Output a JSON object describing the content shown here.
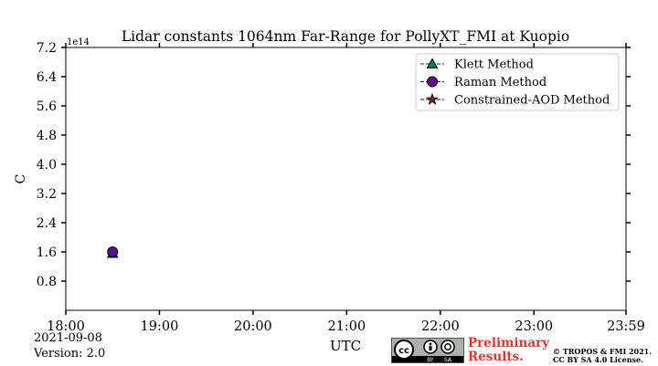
{
  "chart_data": {
    "type": "scatter",
    "title": "Lidar constants 1064nm Far-Range for PollyXT_FMI at Kuopio",
    "xlabel": "UTC",
    "ylabel": "C",
    "y_offset_label": "1e14",
    "x_tick_labels": [
      "18:00",
      "19:00",
      "20:00",
      "21:00",
      "22:00",
      "23:00",
      "23:59"
    ],
    "x_ticks_hours": [
      18,
      19,
      20,
      21,
      22,
      23,
      23.9833
    ],
    "xlim_hours": [
      18,
      23.9833
    ],
    "y_ticks": [
      0.8,
      1.6,
      2.4,
      3.2,
      4.0,
      4.8,
      5.6,
      6.4,
      7.2
    ],
    "y_tick_labels": [
      "0.8",
      "1.6",
      "2.4",
      "3.2",
      "4.0",
      "4.8",
      "5.6",
      "6.4",
      "7.2"
    ],
    "ylim": [
      0,
      7.2
    ],
    "grid": false,
    "legend_position": "top-right",
    "series": [
      {
        "name": "Klett Method",
        "marker": "triangle",
        "color": "#1a7a52",
        "x": [
          "18:30"
        ],
        "values": [
          1.56
        ]
      },
      {
        "name": "Raman Method",
        "marker": "circle",
        "color": "#5a0e8e",
        "x": [
          "18:30"
        ],
        "values": [
          1.6
        ]
      },
      {
        "name": "Constrained-AOD Method",
        "marker": "star",
        "color": "#7a2a1a",
        "x": [],
        "values": []
      }
    ]
  },
  "footer": {
    "date": "2021-09-08",
    "version": "Version: 2.0",
    "preliminary_line1": "Preliminary",
    "preliminary_line2": "Results.",
    "copyright_line1": "© TROPOS & FMI 2021.",
    "copyright_line2": "CC BY SA 4.0 License.",
    "license_badge": "cc-by-sa-icon",
    "badge_text_by": "BY",
    "badge_text_sa": "SA"
  }
}
